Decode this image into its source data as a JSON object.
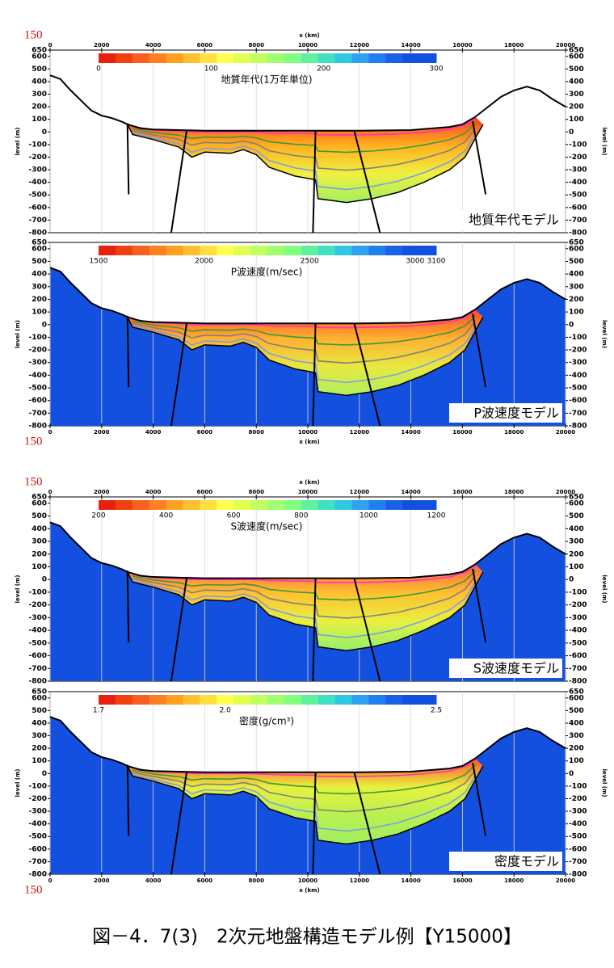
{
  "chart_data": [
    {
      "type": "section",
      "marker": "150",
      "xlabel": "x (km)",
      "ylabel": "level (m)",
      "label": "地質年代モデル",
      "xaxis_side": "top",
      "grid": true,
      "xlim": [
        0,
        20000
      ],
      "xticks": [
        0,
        2000,
        4000,
        6000,
        8000,
        10000,
        12000,
        14000,
        16000,
        18000,
        20000
      ],
      "ylim": [
        -800,
        650
      ],
      "yticks": [
        650,
        600,
        500,
        400,
        300,
        200,
        100,
        0,
        -100,
        -200,
        -300,
        -400,
        -500,
        -600,
        -700,
        -800
      ],
      "colorbar": {
        "title": "地質年代(1万年単位)",
        "lim": [
          0,
          300
        ],
        "ticks": [
          0,
          100,
          200,
          300
        ]
      },
      "basin_colors": [
        "#ff3a1a",
        "#ffb020",
        "#f0f040",
        "#a0f060"
      ],
      "surface": {
        "x": [
          0,
          400,
          800,
          1200,
          1600,
          2000,
          2400,
          2800,
          3000,
          3500,
          4000,
          5000,
          6000,
          8000,
          10000,
          12000,
          14000,
          15500,
          16000,
          16500,
          17000,
          17500,
          18000,
          18500,
          19000,
          19500,
          20000
        ],
        "values": [
          450,
          420,
          330,
          250,
          170,
          130,
          110,
          80,
          60,
          30,
          20,
          15,
          10,
          10,
          10,
          10,
          15,
          40,
          60,
          120,
          200,
          280,
          330,
          360,
          330,
          260,
          200
        ],
        "color": "#000000"
      },
      "basin_bottom": {
        "x": [
          3000,
          3200,
          4000,
          5000,
          5500,
          6000,
          7000,
          7500,
          8000,
          8500,
          9500,
          10300,
          10400,
          11500,
          12500,
          13500,
          14500,
          15500,
          16100,
          16500,
          16800
        ],
        "values": [
          60,
          -20,
          -60,
          -120,
          -200,
          -160,
          -170,
          -140,
          -180,
          -280,
          -350,
          -380,
          -530,
          -560,
          -530,
          -480,
          -400,
          -300,
          -200,
          -50,
          60
        ]
      }
    },
    {
      "type": "section",
      "marker": "150",
      "xlabel": "x (km)",
      "ylabel": "level (m)",
      "label": "P波速度モデル",
      "xaxis_side": "bottom",
      "grid": true,
      "ground_color": "#1450e0",
      "xlim": [
        0,
        20000
      ],
      "xticks": [
        0,
        2000,
        4000,
        6000,
        8000,
        10000,
        12000,
        14000,
        16000,
        18000,
        20000
      ],
      "ylim": [
        -800,
        650
      ],
      "yticks": [
        650,
        600,
        500,
        400,
        300,
        200,
        100,
        0,
        -100,
        -200,
        -300,
        -400,
        -500,
        -600,
        -700,
        -800
      ],
      "colorbar": {
        "title": "P波速度(m/sec)",
        "lim": [
          1500,
          3100
        ],
        "ticks": [
          1500,
          2000,
          2500,
          3000,
          3100
        ]
      },
      "basin_colors": [
        "#ff4a20",
        "#ffb030",
        "#e8e840",
        "#b0f060"
      ],
      "surface": {
        "x": [
          0,
          400,
          800,
          1200,
          1600,
          2000,
          2400,
          2800,
          3000,
          3500,
          4000,
          5000,
          6000,
          8000,
          10000,
          12000,
          14000,
          15500,
          16000,
          16500,
          17000,
          17500,
          18000,
          18500,
          19000,
          19500,
          20000
        ],
        "values": [
          450,
          420,
          330,
          250,
          170,
          130,
          110,
          80,
          60,
          30,
          20,
          15,
          10,
          10,
          10,
          10,
          15,
          40,
          60,
          120,
          200,
          280,
          330,
          360,
          330,
          260,
          200
        ],
        "color": "#000000"
      },
      "basin_bottom": {
        "x": [
          3000,
          3200,
          4000,
          5000,
          5500,
          6000,
          7000,
          7500,
          8000,
          8500,
          9500,
          10300,
          10400,
          11500,
          12500,
          13500,
          14500,
          15500,
          16100,
          16500,
          16800
        ],
        "values": [
          60,
          -20,
          -60,
          -120,
          -200,
          -160,
          -170,
          -140,
          -180,
          -280,
          -350,
          -380,
          -530,
          -560,
          -530,
          -480,
          -400,
          -300,
          -200,
          -50,
          60
        ]
      }
    },
    {
      "type": "section",
      "marker": "150",
      "xlabel": "x (km)",
      "ylabel": "level (m)",
      "label": "S波速度モデル",
      "xaxis_side": "top",
      "grid": true,
      "ground_color": "#1450e0",
      "xlim": [
        0,
        20000
      ],
      "xticks": [
        0,
        2000,
        4000,
        6000,
        8000,
        10000,
        12000,
        14000,
        16000,
        18000,
        20000
      ],
      "ylim": [
        -800,
        650
      ],
      "yticks": [
        650,
        600,
        500,
        400,
        300,
        200,
        100,
        0,
        -100,
        -200,
        -300,
        -400,
        -500,
        -600,
        -700,
        -800
      ],
      "colorbar": {
        "title": "S波速度(m/sec)",
        "lim": [
          200,
          1200
        ],
        "ticks": [
          200,
          400,
          600,
          800,
          1000,
          1200
        ]
      },
      "basin_colors": [
        "#ff6040",
        "#ffc030",
        "#e8f040",
        "#90f070"
      ],
      "surface": {
        "x": [
          0,
          400,
          800,
          1200,
          1600,
          2000,
          2400,
          2800,
          3000,
          3500,
          4000,
          5000,
          6000,
          8000,
          10000,
          12000,
          14000,
          15500,
          16000,
          16500,
          17000,
          17500,
          18000,
          18500,
          19000,
          19500,
          20000
        ],
        "values": [
          450,
          420,
          330,
          250,
          170,
          130,
          110,
          80,
          60,
          30,
          20,
          15,
          10,
          10,
          10,
          10,
          15,
          40,
          60,
          120,
          200,
          280,
          330,
          360,
          330,
          260,
          200
        ],
        "color": "#000000"
      },
      "basin_bottom": {
        "x": [
          3000,
          3200,
          4000,
          5000,
          5500,
          6000,
          7000,
          7500,
          8000,
          8500,
          9500,
          10300,
          10400,
          11500,
          12500,
          13500,
          14500,
          15500,
          16100,
          16500,
          16800
        ],
        "values": [
          60,
          -20,
          -60,
          -120,
          -200,
          -160,
          -170,
          -140,
          -180,
          -280,
          -350,
          -380,
          -530,
          -560,
          -530,
          -480,
          -400,
          -300,
          -200,
          -50,
          60
        ]
      }
    },
    {
      "type": "section",
      "marker": "150",
      "xlabel": "x (km)",
      "ylabel": "level (m)",
      "label": "密度モデル",
      "xaxis_side": "bottom",
      "grid": true,
      "ground_color": "#1450e0",
      "xlim": [
        0,
        20000
      ],
      "xticks": [
        0,
        2000,
        4000,
        6000,
        8000,
        10000,
        12000,
        14000,
        16000,
        18000,
        20000
      ],
      "ylim": [
        -800,
        650
      ],
      "yticks": [
        650,
        600,
        500,
        400,
        300,
        200,
        100,
        0,
        -100,
        -200,
        -300,
        -400,
        -500,
        -600,
        -700,
        -800
      ],
      "colorbar": {
        "title": "密度(g/cm³)",
        "lim": [
          1.7,
          2.5
        ],
        "ticks": [
          1.7,
          {
            "value": 2,
            "label": "2.0"
          },
          2.5
        ]
      },
      "basin_colors": [
        "#ff5020",
        "#e8f040",
        "#b8f050",
        "#a0f060"
      ],
      "surface": {
        "x": [
          0,
          400,
          800,
          1200,
          1600,
          2000,
          2400,
          2800,
          3000,
          3500,
          4000,
          5000,
          6000,
          8000,
          10000,
          12000,
          14000,
          15500,
          16000,
          16500,
          17000,
          17500,
          18000,
          18500,
          19000,
          19500,
          20000
        ],
        "values": [
          450,
          420,
          330,
          250,
          170,
          130,
          110,
          80,
          60,
          30,
          20,
          15,
          10,
          10,
          10,
          10,
          15,
          40,
          60,
          120,
          200,
          280,
          330,
          360,
          330,
          260,
          200
        ],
        "color": "#000000"
      },
      "basin_bottom": {
        "x": [
          3000,
          3200,
          4000,
          5000,
          5500,
          6000,
          7000,
          7500,
          8000,
          8500,
          9500,
          10300,
          10400,
          11500,
          12500,
          13500,
          14500,
          15500,
          16100,
          16500,
          16800
        ],
        "values": [
          60,
          -20,
          -60,
          -120,
          -200,
          -160,
          -170,
          -140,
          -180,
          -280,
          -350,
          -380,
          -530,
          -560,
          -530,
          -480,
          -400,
          -300,
          -200,
          -50,
          60
        ]
      }
    }
  ],
  "colormap": [
    "#e82010",
    "#f04010",
    "#f86020",
    "#ff8020",
    "#ffa020",
    "#ffc030",
    "#ffe040",
    "#ffff50",
    "#e0ff50",
    "#c0ff60",
    "#a0ff70",
    "#80ff80",
    "#60f0a0",
    "#40e0c0",
    "#30c8e0",
    "#30a0f0",
    "#2080f0",
    "#1a60e8",
    "#1450e0",
    "#1450e0"
  ],
  "caption": "図－4．7(3)　2次元地盤構造モデル例【Y15000】"
}
